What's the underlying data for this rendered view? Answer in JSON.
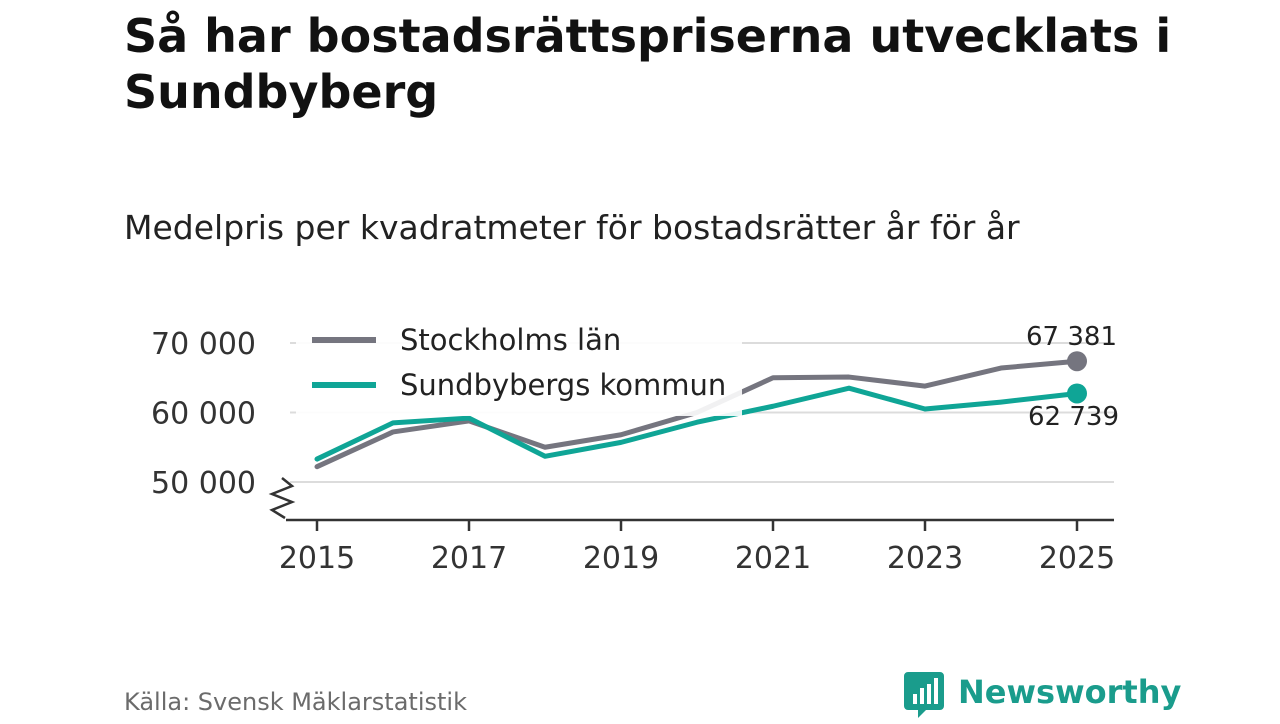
{
  "title": "Så har bostadsrättspriserna utvecklats i Sundbyberg",
  "subtitle": "Medelpris per kvadratmeter för bostadsrätter år för år",
  "source": "Källa: Svensk Mäklarstatistik",
  "brand": {
    "name": "Newsworthy",
    "icon": "newsworthy-logo-icon",
    "color": "#1a9c8c"
  },
  "chart_data": {
    "type": "line",
    "title": "Medelpris per kvadratmeter för bostadsrätter år för år",
    "xlabel": "",
    "ylabel": "",
    "x": [
      2015,
      2016,
      2017,
      2018,
      2019,
      2020,
      2021,
      2022,
      2023,
      2024,
      2025
    ],
    "xticks": [
      2015,
      2017,
      2019,
      2021,
      2023,
      2025
    ],
    "xtick_labels": [
      "2015",
      "2017",
      "2019",
      "2021",
      "2023",
      "2025"
    ],
    "yticks": [
      50000,
      60000,
      70000
    ],
    "ytick_labels": [
      "50 000",
      "60 000",
      "70 000"
    ],
    "ylim": [
      45000,
      72000
    ],
    "xlim": [
      2014.6,
      2025.5
    ],
    "axis_break": true,
    "grid": true,
    "legend_position": "top-left",
    "series": [
      {
        "name": "Stockholms län",
        "color": "#75757f",
        "values": [
          52200,
          57200,
          58800,
          55000,
          56800,
          60000,
          65000,
          65100,
          63800,
          66400,
          67381
        ],
        "end_label": "67 381"
      },
      {
        "name": "Sundbybergs kommun",
        "color": "#0fa596",
        "values": [
          53300,
          58500,
          59200,
          53700,
          55700,
          58600,
          60900,
          63500,
          60500,
          61500,
          62739
        ],
        "end_label": "62 739"
      }
    ]
  }
}
